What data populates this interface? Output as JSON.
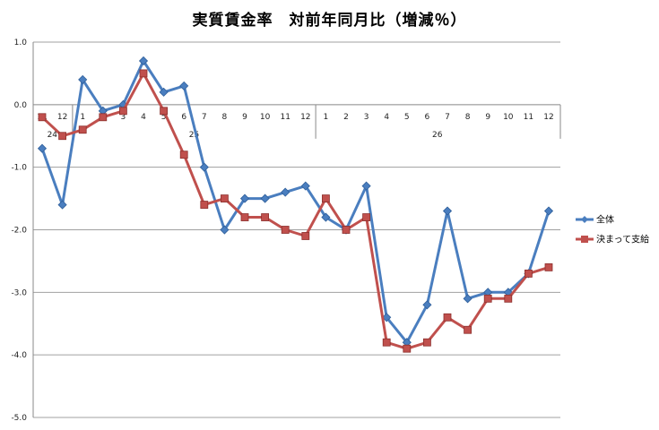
{
  "chart_data": {
    "type": "line",
    "title": "実質賃金率　対前年同月比（増減％）",
    "xlabel": "",
    "ylabel": "",
    "ylim": [
      -5.0,
      1.0
    ],
    "ytick_labels": [
      "1.0",
      "0.0",
      "-1.0",
      "-2.0",
      "-3.0",
      "-4.0",
      "-5.0"
    ],
    "categories": [
      "11",
      "12",
      "1",
      "2",
      "3",
      "4",
      "5",
      "6",
      "7",
      "8",
      "9",
      "10",
      "11",
      "12",
      "1",
      "2",
      "3",
      "4",
      "5",
      "6",
      "7",
      "8",
      "9",
      "10",
      "11",
      "12"
    ],
    "year_groups": [
      {
        "label": "24",
        "start": 0,
        "end": 1
      },
      {
        "label": "25",
        "start": 2,
        "end": 13
      },
      {
        "label": "26",
        "start": 14,
        "end": 25
      }
    ],
    "grid": true,
    "legend_position": "right",
    "series": [
      {
        "name": "全体",
        "color": "#4a7ebf",
        "marker": "diamond",
        "values": [
          -0.7,
          -1.6,
          0.4,
          -0.1,
          0.0,
          0.7,
          0.2,
          0.3,
          -1.0,
          -2.0,
          -1.5,
          -1.5,
          -1.4,
          -1.3,
          -1.8,
          -2.0,
          -1.3,
          -3.4,
          -3.8,
          -3.2,
          -1.7,
          -3.1,
          -3.0,
          -3.0,
          -2.7,
          -1.7
        ]
      },
      {
        "name": "決まって支給",
        "color": "#c0504d",
        "marker": "square",
        "values": [
          -0.2,
          -0.5,
          -0.4,
          -0.2,
          -0.1,
          0.5,
          -0.1,
          -0.8,
          -1.6,
          -1.5,
          -1.8,
          -1.8,
          -2.0,
          -2.1,
          -1.5,
          -2.0,
          -1.8,
          -3.8,
          -3.9,
          -3.8,
          -3.4,
          -3.6,
          -3.1,
          -3.1,
          -2.7,
          -2.6
        ]
      }
    ]
  }
}
